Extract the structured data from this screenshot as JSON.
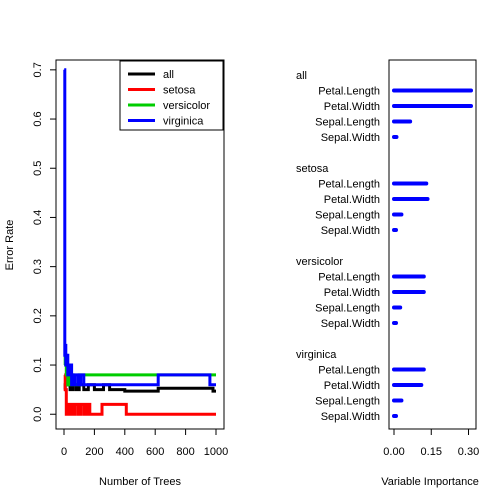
{
  "chart_data": [
    {
      "type": "line",
      "title": "",
      "xlabel": "Number of Trees",
      "ylabel": "Error Rate",
      "xlim": [
        0,
        1000
      ],
      "ylim": [
        -0.03,
        0.72
      ],
      "xticks": [
        0,
        200,
        400,
        600,
        800,
        1000
      ],
      "xtick_labels": [
        "0",
        "200",
        "400",
        "600",
        "800",
        "1000"
      ],
      "yticks": [
        0.0,
        0.1,
        0.2,
        0.3,
        0.4,
        0.5,
        0.6,
        0.7
      ],
      "ytick_labels": [
        "0.0",
        "0.1",
        "0.2",
        "0.3",
        "0.4",
        "0.5",
        "0.6",
        "0.7"
      ],
      "legend_position": "top-right",
      "series": [
        {
          "name": "all",
          "color": "#000000",
          "x": [
            1,
            8,
            15,
            25,
            40,
            60,
            80,
            100,
            130,
            160,
            200,
            260,
            300,
            400,
            500,
            600,
            620,
            700,
            800,
            960,
            980,
            1000
          ],
          "y": [
            0.05,
            0.06,
            0.07,
            0.06,
            0.05,
            0.06,
            0.05,
            0.06,
            0.05,
            0.06,
            0.05,
            0.06,
            0.05,
            0.047,
            0.047,
            0.047,
            0.053,
            0.053,
            0.053,
            0.053,
            0.047,
            0.047
          ]
        },
        {
          "name": "setosa",
          "color": "#ff0000",
          "x": [
            1,
            8,
            15,
            30,
            50,
            70,
            90,
            110,
            130,
            150,
            170,
            240,
            250,
            400,
            410,
            1000
          ],
          "y": [
            0.08,
            0.05,
            0.0,
            0.02,
            0.0,
            0.02,
            0.0,
            0.02,
            0.0,
            0.02,
            0.0,
            0.0,
            0.02,
            0.02,
            0.0,
            0.0
          ]
        },
        {
          "name": "versicolor",
          "color": "#00cd00",
          "x": [
            1,
            8,
            15,
            25,
            40,
            60,
            80,
            100,
            120,
            300,
            600,
            800,
            1000
          ],
          "y": [
            0.1,
            0.12,
            0.08,
            0.06,
            0.08,
            0.06,
            0.06,
            0.08,
            0.08,
            0.08,
            0.08,
            0.08,
            0.08
          ]
        },
        {
          "name": "virginica",
          "color": "#0000ff",
          "x": [
            1,
            5,
            8,
            12,
            18,
            25,
            35,
            50,
            70,
            90,
            110,
            130,
            160,
            200,
            300,
            400,
            600,
            620,
            800,
            960,
            1000
          ],
          "y": [
            0.7,
            0.12,
            0.14,
            0.1,
            0.12,
            0.08,
            0.1,
            0.06,
            0.08,
            0.06,
            0.08,
            0.06,
            0.06,
            0.06,
            0.06,
            0.06,
            0.06,
            0.08,
            0.08,
            0.06,
            0.06
          ]
        }
      ]
    },
    {
      "type": "dotchart",
      "title": "",
      "xlabel": "Variable Importance",
      "xlim": [
        0,
        0.31
      ],
      "xticks": [
        0.0,
        0.15,
        0.3
      ],
      "xtick_labels": [
        "0.00",
        "0.15",
        "0.30"
      ],
      "point_color": "#0000ff",
      "groups": [
        {
          "label": "all",
          "color": "#000000",
          "variables": [
            "Petal.Length",
            "Petal.Width",
            "Sepal.Length",
            "Sepal.Width"
          ],
          "values": [
            0.31,
            0.31,
            0.065,
            0.01
          ]
        },
        {
          "label": "setosa",
          "color": "#ff0000",
          "variables": [
            "Petal.Length",
            "Petal.Width",
            "Sepal.Length",
            "Sepal.Width"
          ],
          "values": [
            0.13,
            0.135,
            0.03,
            0.005
          ]
        },
        {
          "label": "versicolor",
          "color": "#00cd00",
          "variables": [
            "Petal.Length",
            "Petal.Width",
            "Sepal.Length",
            "Sepal.Width"
          ],
          "values": [
            0.12,
            0.12,
            0.025,
            0.005
          ]
        },
        {
          "label": "virginica",
          "color": "#0000ff",
          "variables": [
            "Petal.Length",
            "Petal.Width",
            "Sepal.Length",
            "Sepal.Width"
          ],
          "values": [
            0.12,
            0.11,
            0.03,
            0.005
          ]
        }
      ]
    }
  ]
}
